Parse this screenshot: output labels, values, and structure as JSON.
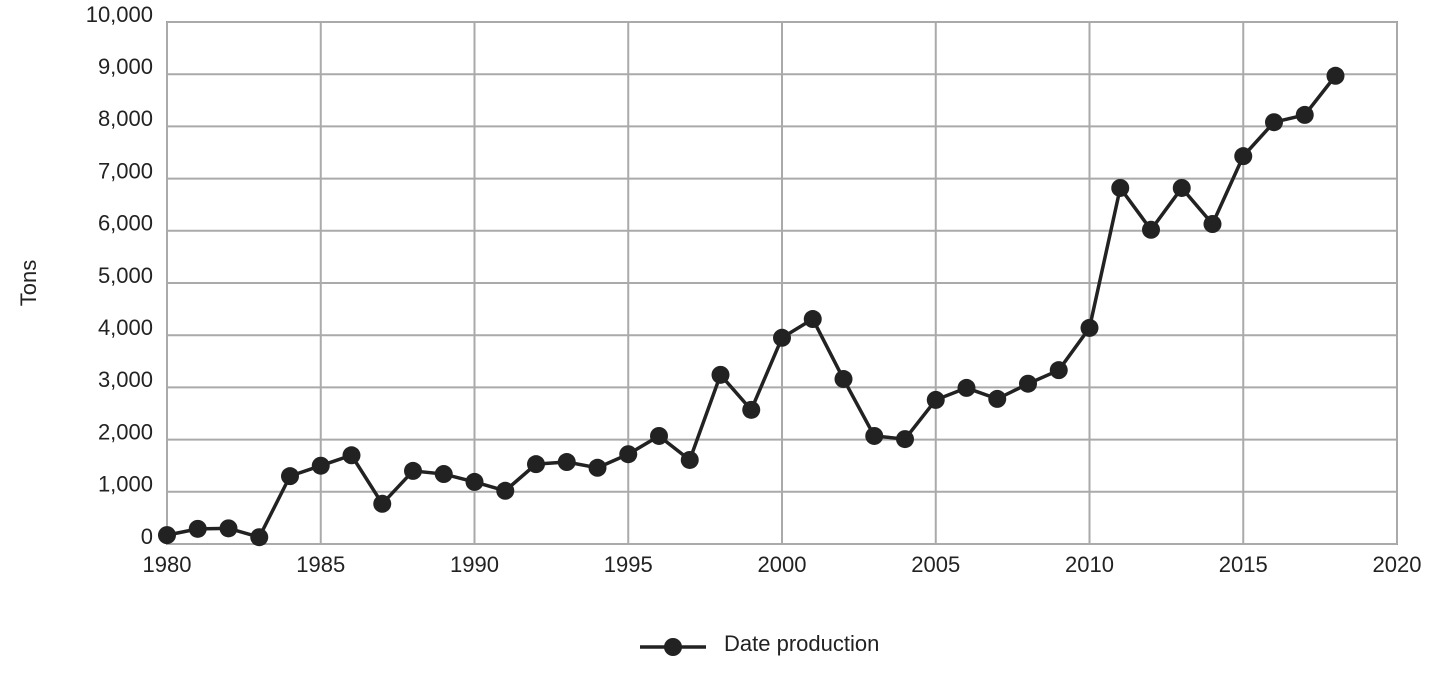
{
  "chart_data": {
    "type": "line",
    "y_label": "Tons",
    "x": [
      1980,
      1981,
      1982,
      1983,
      1984,
      1985,
      1986,
      1987,
      1988,
      1989,
      1990,
      1991,
      1992,
      1993,
      1994,
      1995,
      1996,
      1997,
      1998,
      1999,
      2000,
      2001,
      2002,
      2003,
      2004,
      2005,
      2006,
      2007,
      2008,
      2009,
      2010,
      2011,
      2012,
      2013,
      2014,
      2015,
      2016,
      2017,
      2018
    ],
    "series": [
      {
        "name": "Date production",
        "color": "#222222",
        "values": [
          170,
          290,
          300,
          130,
          1300,
          1500,
          1700,
          770,
          1400,
          1340,
          1190,
          1020,
          1530,
          1570,
          1460,
          1720,
          2070,
          1610,
          3240,
          2570,
          3950,
          4310,
          3160,
          2070,
          2010,
          2760,
          2990,
          2780,
          3070,
          3330,
          4140,
          6820,
          6020,
          6820,
          6130,
          7430,
          8080,
          8220,
          8970
        ]
      }
    ],
    "xlim": [
      1980,
      2020
    ],
    "xticks": [
      1980,
      1985,
      1990,
      1995,
      2000,
      2005,
      2010,
      2015,
      2020
    ],
    "ylim": [
      0,
      10000
    ],
    "yticks": [
      0,
      {
        "value": 1000,
        "label": "1,000"
      },
      {
        "value": 2000,
        "label": "2,000"
      },
      {
        "value": 3000,
        "label": "3,000"
      },
      {
        "value": 4000,
        "label": "4,000"
      },
      {
        "value": 5000,
        "label": "5,000"
      },
      {
        "value": 6000,
        "label": "6,000"
      },
      {
        "value": 7000,
        "label": "7,000"
      },
      {
        "value": 8000,
        "label": "8,000"
      },
      {
        "value": 9000,
        "label": "9,000"
      },
      {
        "value": 10000,
        "label": "10,000"
      }
    ],
    "grid": true,
    "legend": "bottom"
  }
}
